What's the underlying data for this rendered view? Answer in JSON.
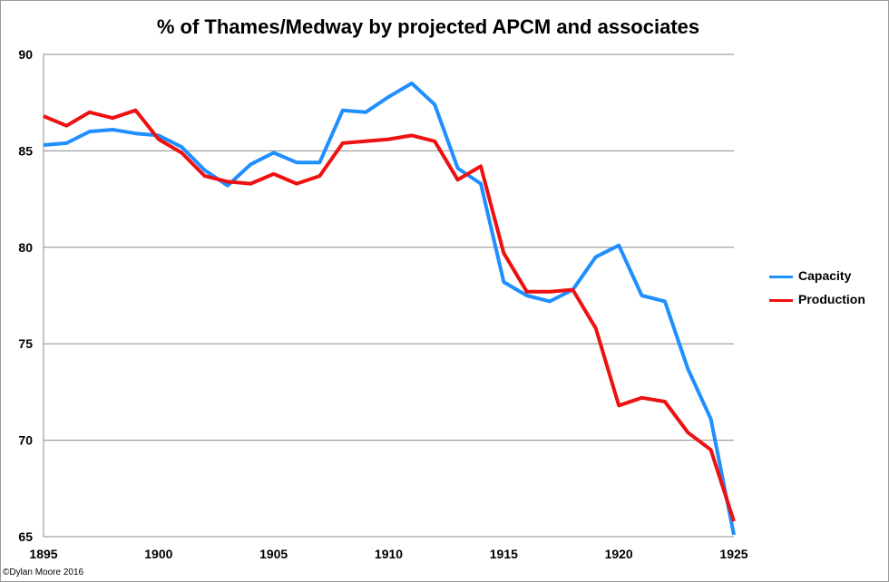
{
  "chart_data": {
    "type": "line",
    "title": "% of Thames/Medway by projected APCM and associates",
    "xlabel": "",
    "ylabel": "",
    "xlim": [
      1895,
      1925
    ],
    "ylim": [
      65,
      90
    ],
    "x_ticks": [
      1895,
      1900,
      1905,
      1910,
      1915,
      1920,
      1925
    ],
    "y_ticks": [
      65,
      70,
      75,
      80,
      85,
      90
    ],
    "grid": "horizontal",
    "legend_position": "right",
    "x": [
      1895,
      1896,
      1897,
      1898,
      1899,
      1900,
      1901,
      1902,
      1903,
      1904,
      1905,
      1906,
      1907,
      1908,
      1909,
      1910,
      1911,
      1912,
      1913,
      1914,
      1915,
      1916,
      1917,
      1918,
      1919,
      1920,
      1921,
      1922,
      1923,
      1924,
      1925
    ],
    "series": [
      {
        "name": "Capacity",
        "color": "#1f8fff",
        "values": [
          85.3,
          85.4,
          86.0,
          86.1,
          85.9,
          85.8,
          85.2,
          84.0,
          83.2,
          84.3,
          84.9,
          84.4,
          84.4,
          87.1,
          87.0,
          87.8,
          88.5,
          87.4,
          84.1,
          83.3,
          78.2,
          77.5,
          77.2,
          77.8,
          79.5,
          80.1,
          77.5,
          77.2,
          73.7,
          71.1,
          65.1
        ]
      },
      {
        "name": "Production",
        "color": "#ee1111",
        "values": [
          86.8,
          86.3,
          87.0,
          86.7,
          87.1,
          85.6,
          84.9,
          83.7,
          83.4,
          83.3,
          83.8,
          83.3,
          83.7,
          85.4,
          85.5,
          85.6,
          85.8,
          85.5,
          83.5,
          84.2,
          79.7,
          77.7,
          77.7,
          77.8,
          75.8,
          71.8,
          72.2,
          72.0,
          70.4,
          69.5,
          65.8
        ]
      }
    ]
  },
  "credit": "©Dylan Moore 2016"
}
